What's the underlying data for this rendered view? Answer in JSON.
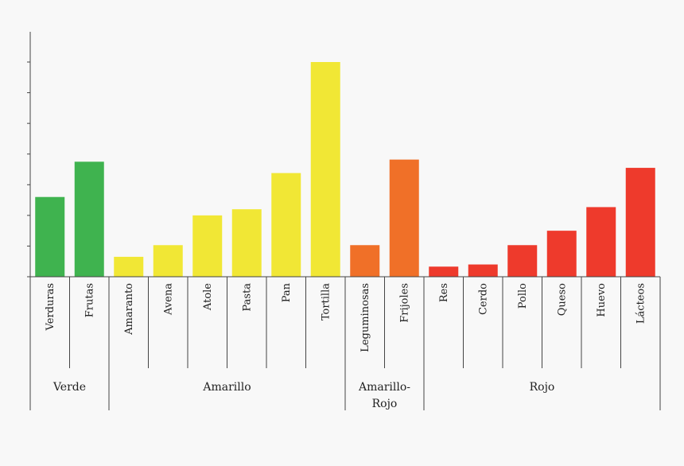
{
  "chart_data": {
    "type": "bar",
    "title": "",
    "xlabel": "",
    "ylabel": "",
    "ylim": [
      0,
      7
    ],
    "y_ticks": 7,
    "grid": false,
    "categories": [
      "Verduras",
      "Frutas",
      "Amaranto",
      "Avena",
      "Atole",
      "Pasta",
      "Pan",
      "Tortilla",
      "Leguminosas",
      "Frijoles",
      "Res",
      "Cerdo",
      "Pollo",
      "Queso",
      "Huevo",
      "Lácteos"
    ],
    "values": [
      2.6,
      3.75,
      0.65,
      1.03,
      2.0,
      2.2,
      3.38,
      7.0,
      1.03,
      3.82,
      0.33,
      0.4,
      1.03,
      1.5,
      2.27,
      3.55
    ],
    "colors": [
      "#3fb34f",
      "#3fb34f",
      "#f1e735",
      "#f1e735",
      "#f1e735",
      "#f1e735",
      "#f1e735",
      "#f1e735",
      "#f07028",
      "#f07028",
      "#ee3a2c",
      "#ee3a2c",
      "#ee3a2c",
      "#ee3a2c",
      "#ee3a2c",
      "#ee3a2c"
    ],
    "groups": [
      {
        "label": [
          "Verde"
        ],
        "start": 0,
        "end": 1,
        "color": "#3fb34f"
      },
      {
        "label": [
          "Amarillo"
        ],
        "start": 2,
        "end": 7,
        "color": "#f1e735"
      },
      {
        "label": [
          "Amarillo-",
          "Rojo"
        ],
        "start": 8,
        "end": 9,
        "color": "#f07028"
      },
      {
        "label": [
          "Rojo"
        ],
        "start": 10,
        "end": 15,
        "color": "#ee3a2c"
      }
    ]
  }
}
